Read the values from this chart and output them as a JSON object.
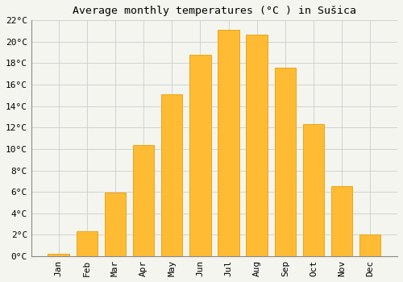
{
  "title": "Average monthly temperatures (°C ) in Sušica",
  "months": [
    "Jan",
    "Feb",
    "Mar",
    "Apr",
    "May",
    "Jun",
    "Jul",
    "Aug",
    "Sep",
    "Oct",
    "Nov",
    "Dec"
  ],
  "values": [
    0.2,
    2.3,
    5.9,
    10.4,
    15.1,
    18.8,
    21.1,
    20.7,
    17.6,
    12.3,
    6.5,
    2.0
  ],
  "bar_color": "#FFBB33",
  "bar_edge_color": "#E8A000",
  "ylim": [
    0,
    22
  ],
  "yticks": [
    0,
    2,
    4,
    6,
    8,
    10,
    12,
    14,
    16,
    18,
    20,
    22
  ],
  "background_color": "#f5f5f0",
  "grid_color": "#cccccc",
  "title_fontsize": 9.5,
  "tick_fontsize": 8,
  "font_family": "monospace"
}
